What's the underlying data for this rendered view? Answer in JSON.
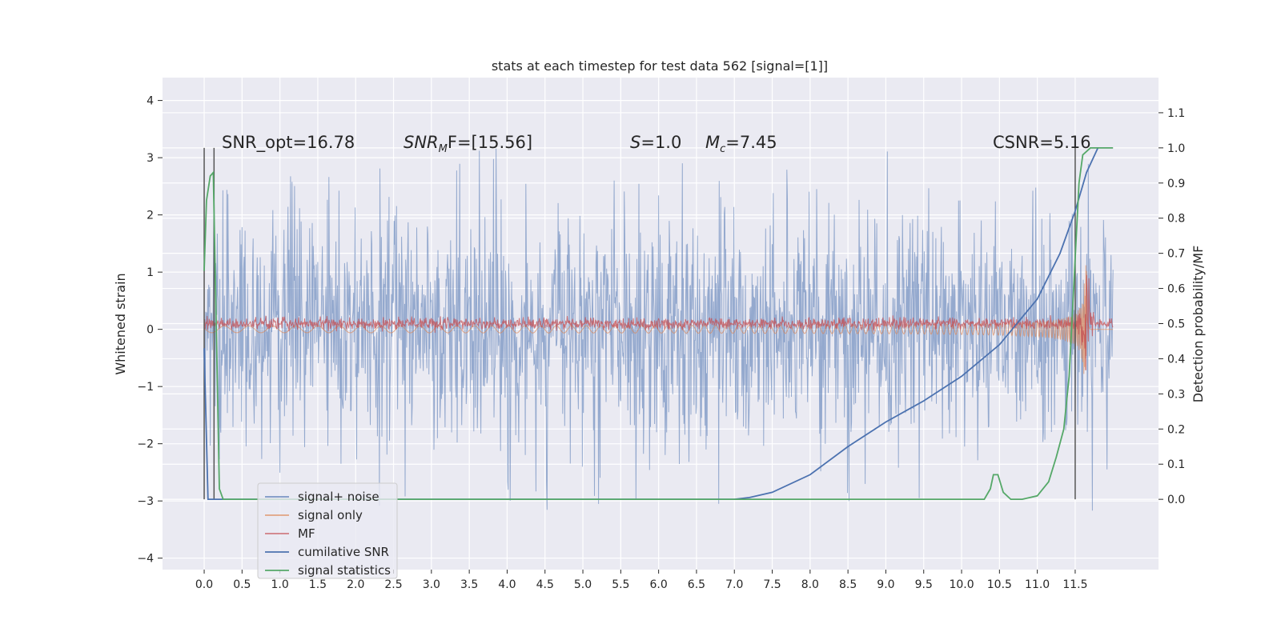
{
  "chart_data": {
    "type": "line",
    "title": "stats at each timestep for test data 562 [signal=[1]]",
    "ylabel_left": "Whitened strain",
    "ylabel_right": "Detection probability/MF",
    "ylim_left": [
      -4.2,
      4.4
    ],
    "ylim_right": [
      -0.2,
      1.2
    ],
    "xlim": [
      -0.55,
      12.6
    ],
    "x_ticks": [
      "0.0",
      "0.5",
      "1.0",
      "1.5",
      "2.0",
      "2.5",
      "3.0",
      "3.5",
      "4.0",
      "4.5",
      "5.0",
      "5.5",
      "6.0",
      "6.5",
      "7.0",
      "7.5",
      "8.0",
      "8.5",
      "9.0",
      "9.5",
      "10.0",
      "10.5",
      "11.0",
      "11.5"
    ],
    "y_ticks_left": [
      "4",
      "3",
      "2",
      "1",
      "0",
      "−1",
      "−2",
      "−3",
      "−4"
    ],
    "y_ticks_right": [
      "1.1",
      "1.0",
      "0.9",
      "0.8",
      "0.7",
      "0.6",
      "0.5",
      "0.4",
      "0.3",
      "0.2",
      "0.1",
      "0.0"
    ],
    "grid": true,
    "legend_position": "lower-left",
    "annotations": {
      "snr_opt": "SNR_opt=16.78",
      "snr_mf_prefix": "SNR",
      "snr_mf_sub": "M",
      "snr_mf_suffix": "F=[15.56]",
      "s_italic": "S",
      "s_value": "=1.0",
      "mc_italic": "M",
      "mc_sub": "c",
      "mc_value": "=7.45",
      "csnr": "CSNR=5.16"
    },
    "series": [
      {
        "name": "signal+ noise",
        "color": "#4c72b0",
        "axis": "left",
        "style": "noise band, approx ±1.4 typical with spikes to ±3.3"
      },
      {
        "name": "signal only",
        "color": "#dd8452",
        "axis": "left",
        "style": "chirp envelope growing toward merger at 11.65"
      },
      {
        "name": "MF",
        "color": "#c44e52",
        "axis": "left",
        "style": "small band near 0"
      },
      {
        "name": "cumilative SNR",
        "color": "#4c72b0",
        "axis": "right",
        "x": [
          0.0,
          0.05,
          0.15,
          7.0,
          7.2,
          7.5,
          8.0,
          8.5,
          9.0,
          9.5,
          10.0,
          10.5,
          11.0,
          11.3,
          11.5,
          11.65,
          11.8
        ],
        "y": [
          0.43,
          0.0,
          0.0,
          0.0,
          0.005,
          0.02,
          0.07,
          0.15,
          0.22,
          0.28,
          0.35,
          0.44,
          0.57,
          0.7,
          0.82,
          0.93,
          1.0
        ]
      },
      {
        "name": "signal statistics",
        "color": "#55a868",
        "axis": "right",
        "x": [
          0.0,
          0.03,
          0.08,
          0.12,
          0.15,
          0.2,
          0.25,
          0.3,
          10.3,
          10.38,
          10.42,
          10.48,
          10.55,
          10.65,
          10.8,
          11.0,
          11.15,
          11.25,
          11.35,
          11.42,
          11.48,
          11.55,
          11.6,
          11.7,
          11.8,
          12.0
        ],
        "y": [
          0.65,
          0.85,
          0.92,
          0.93,
          0.6,
          0.03,
          0.0,
          0.0,
          0.0,
          0.03,
          0.07,
          0.07,
          0.02,
          0.0,
          0.0,
          0.01,
          0.05,
          0.12,
          0.2,
          0.35,
          0.6,
          0.9,
          0.98,
          1.0,
          1.0,
          1.0
        ]
      }
    ],
    "vertical_markers_x": [
      0.0,
      0.13,
      11.5
    ]
  }
}
